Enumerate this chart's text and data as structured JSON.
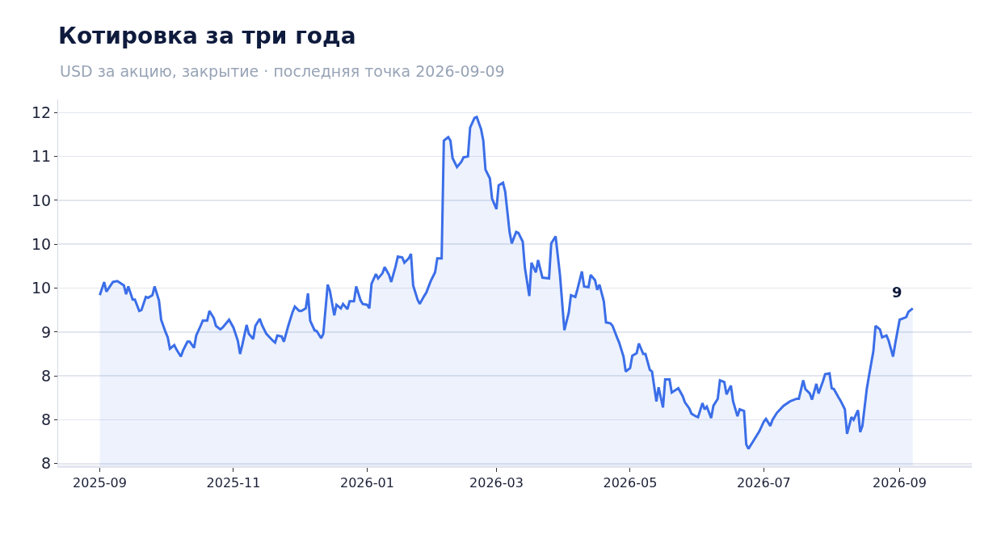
{
  "chart_data": {
    "type": "area",
    "title": "Котировка за три года",
    "subtitle": "USD за акцию, закрытие · последняя точка 2026-09-09",
    "color": "#3b6ee8",
    "grid": "y",
    "xlim": [
      "2025-08-13",
      "2026-10-04"
    ],
    "ylim": [
      7.48,
      11.65
    ],
    "xticks": [
      "2025-09",
      "2025-11",
      "2026-01",
      "2026-03",
      "2026-05",
      "2026-07",
      "2026-09"
    ],
    "yticks": [
      {
        "value": 7.5,
        "label": "8"
      },
      {
        "value": 8.0,
        "label": "8"
      },
      {
        "value": 8.5,
        "label": "8"
      },
      {
        "value": 9.0,
        "label": "9"
      },
      {
        "value": 9.5,
        "label": "10"
      },
      {
        "value": 10.0,
        "label": "10"
      },
      {
        "value": 10.5,
        "label": "10"
      },
      {
        "value": 11.0,
        "label": "11"
      },
      {
        "value": 11.5,
        "label": "12"
      }
    ],
    "annotations": [
      {
        "text": "9",
        "x": "2026-09-07",
        "y": 9.27
      }
    ],
    "x": [
      "2025-09-01",
      "2025-09-03",
      "2025-09-04",
      "2025-09-07",
      "2025-09-09",
      "2025-09-12",
      "2025-09-13",
      "2025-09-14",
      "2025-09-16",
      "2025-09-17",
      "2025-09-19",
      "2025-09-20",
      "2025-09-22",
      "2025-09-23",
      "2025-09-25",
      "2025-09-26",
      "2025-09-28",
      "2025-09-29",
      "2025-10-01",
      "2025-10-02",
      "2025-10-03",
      "2025-10-05",
      "2025-10-06",
      "2025-10-08",
      "2025-10-09",
      "2025-10-11",
      "2025-10-12",
      "2025-10-14",
      "2025-10-15",
      "2025-10-17",
      "2025-10-18",
      "2025-10-20",
      "2025-10-21",
      "2025-10-23",
      "2025-10-24",
      "2025-10-26",
      "2025-10-27",
      "2025-10-30",
      "2025-11-01",
      "2025-11-03",
      "2025-11-04",
      "2025-11-05",
      "2025-11-07",
      "2025-11-08",
      "2025-11-10",
      "2025-11-11",
      "2025-11-13",
      "2025-11-14",
      "2025-11-16",
      "2025-11-19",
      "2025-11-20",
      "2025-11-21",
      "2025-11-23",
      "2025-11-24",
      "2025-11-26",
      "2025-11-28",
      "2025-11-29",
      "2025-12-01",
      "2025-12-02",
      "2025-12-04",
      "2025-12-05",
      "2025-12-06",
      "2025-12-08",
      "2025-12-09",
      "2025-12-11",
      "2025-12-12",
      "2025-12-14",
      "2025-12-15",
      "2025-12-17",
      "2025-12-18",
      "2025-12-20",
      "2025-12-21",
      "2025-12-23",
      "2025-12-24",
      "2025-12-26",
      "2025-12-27",
      "2025-12-29",
      "2025-12-30",
      "2026-01-01",
      "2026-01-02",
      "2026-01-03",
      "2026-01-05",
      "2026-01-06",
      "2026-01-08",
      "2026-01-09",
      "2026-01-11",
      "2026-01-12",
      "2026-01-14",
      "2026-01-15",
      "2026-01-17",
      "2026-01-18",
      "2026-01-20",
      "2026-01-21",
      "2026-01-22",
      "2026-01-24",
      "2026-01-25",
      "2026-01-27",
      "2026-01-28",
      "2026-01-30",
      "2026-02-01",
      "2026-02-02",
      "2026-02-04",
      "2026-02-05",
      "2026-02-07",
      "2026-02-08",
      "2026-02-09",
      "2026-02-11",
      "2026-02-13",
      "2026-02-14",
      "2026-02-16",
      "2026-02-17",
      "2026-02-19",
      "2026-02-20",
      "2026-02-22",
      "2026-02-23",
      "2026-02-24",
      "2026-02-26",
      "2026-02-27",
      "2026-03-01",
      "2026-03-02",
      "2026-03-04",
      "2026-03-05",
      "2026-03-07",
      "2026-03-08",
      "2026-03-10",
      "2026-03-11",
      "2026-03-13",
      "2026-03-14",
      "2026-03-16",
      "2026-03-17",
      "2026-03-19",
      "2026-03-20",
      "2026-03-22",
      "2026-03-25",
      "2026-03-26",
      "2026-03-28",
      "2026-03-29",
      "2026-03-30",
      "2026-04-01",
      "2026-04-03",
      "2026-04-04",
      "2026-04-06",
      "2026-04-07",
      "2026-04-09",
      "2026-04-10",
      "2026-04-12",
      "2026-04-13",
      "2026-04-15",
      "2026-04-16",
      "2026-04-17",
      "2026-04-19",
      "2026-04-20",
      "2026-04-22",
      "2026-04-23",
      "2026-04-25",
      "2026-04-26",
      "2026-04-28",
      "2026-04-29",
      "2026-05-01",
      "2026-05-02",
      "2026-05-04",
      "2026-05-05",
      "2026-05-07",
      "2026-05-08",
      "2026-05-10",
      "2026-05-11",
      "2026-05-13",
      "2026-05-14",
      "2026-05-16",
      "2026-05-17",
      "2026-05-19",
      "2026-05-20",
      "2026-05-23",
      "2026-05-25",
      "2026-05-26",
      "2026-05-28",
      "2026-05-29",
      "2026-05-31",
      "2026-06-01",
      "2026-06-03",
      "2026-06-04",
      "2026-06-05",
      "2026-06-07",
      "2026-06-08",
      "2026-06-10",
      "2026-06-11",
      "2026-06-13",
      "2026-06-14",
      "2026-06-16",
      "2026-06-17",
      "2026-06-19",
      "2026-06-20",
      "2026-06-22",
      "2026-06-23",
      "2026-06-24",
      "2026-06-26",
      "2026-06-29",
      "2026-07-01",
      "2026-07-02",
      "2026-07-04",
      "2026-07-05",
      "2026-07-07",
      "2026-07-10",
      "2026-07-13",
      "2026-07-16",
      "2026-07-17",
      "2026-07-19",
      "2026-07-20",
      "2026-07-22",
      "2026-07-23",
      "2026-07-25",
      "2026-07-26",
      "2026-07-28",
      "2026-07-29",
      "2026-07-31",
      "2026-08-01",
      "2026-08-02",
      "2026-08-04",
      "2026-08-05",
      "2026-08-07",
      "2026-08-08",
      "2026-08-10",
      "2026-08-11",
      "2026-08-13",
      "2026-08-14",
      "2026-08-15",
      "2026-08-17",
      "2026-08-18",
      "2026-08-20",
      "2026-08-21",
      "2026-08-23",
      "2026-08-24",
      "2026-08-26",
      "2026-08-27",
      "2026-08-29",
      "2026-08-30",
      "2026-09-01",
      "2026-09-02",
      "2026-09-04",
      "2026-09-05",
      "2026-09-07"
    ],
    "values": [
      9.42,
      9.57,
      9.46,
      9.57,
      9.58,
      9.53,
      9.43,
      9.52,
      9.37,
      9.37,
      9.24,
      9.25,
      9.4,
      9.39,
      9.42,
      9.52,
      9.36,
      9.14,
      9.0,
      8.94,
      8.81,
      8.85,
      8.8,
      8.72,
      8.79,
      8.89,
      8.89,
      8.82,
      8.96,
      9.07,
      9.13,
      9.13,
      9.24,
      9.16,
      9.07,
      9.03,
      9.05,
      9.14,
      9.05,
      8.9,
      8.75,
      8.85,
      9.08,
      8.98,
      8.92,
      9.07,
      9.15,
      9.08,
      8.98,
      8.9,
      8.88,
      8.96,
      8.95,
      8.89,
      9.07,
      9.23,
      9.29,
      9.24,
      9.24,
      9.27,
      9.44,
      9.13,
      9.02,
      9.01,
      8.93,
      8.98,
      9.54,
      9.47,
      9.19,
      9.31,
      9.27,
      9.32,
      9.26,
      9.35,
      9.35,
      9.52,
      9.36,
      9.32,
      9.31,
      9.27,
      9.55,
      9.66,
      9.61,
      9.67,
      9.74,
      9.65,
      9.57,
      9.75,
      9.86,
      9.85,
      9.79,
      9.84,
      9.89,
      9.53,
      9.37,
      9.32,
      9.41,
      9.45,
      9.58,
      9.68,
      9.84,
      9.84,
      11.18,
      11.22,
      11.18,
      10.98,
      10.88,
      10.94,
      10.99,
      11.0,
      11.33,
      11.44,
      11.45,
      11.31,
      11.18,
      10.85,
      10.75,
      10.52,
      10.4,
      10.67,
      10.7,
      10.6,
      10.14,
      10.01,
      10.14,
      10.13,
      10.03,
      9.73,
      9.41,
      9.79,
      9.68,
      9.82,
      9.62,
      9.61,
      10.01,
      10.09,
      9.87,
      9.65,
      9.02,
      9.22,
      9.42,
      9.4,
      9.49,
      9.69,
      9.52,
      9.51,
      9.65,
      9.59,
      9.48,
      9.54,
      9.35,
      9.11,
      9.1,
      9.07,
      8.94,
      8.88,
      8.72,
      8.55,
      8.59,
      8.73,
      8.76,
      8.87,
      8.75,
      8.75,
      8.57,
      8.55,
      8.21,
      8.37,
      8.14,
      8.46,
      8.46,
      8.31,
      8.36,
      8.27,
      8.2,
      8.13,
      8.07,
      8.04,
      8.03,
      8.19,
      8.12,
      8.15,
      8.02,
      8.16,
      8.24,
      8.45,
      8.43,
      8.29,
      8.39,
      8.21,
      8.04,
      8.12,
      8.1,
      7.72,
      7.67,
      7.75,
      7.87,
      7.98,
      8.01,
      7.93,
      8.0,
      8.08,
      8.16,
      8.21,
      8.24,
      8.24,
      8.45,
      8.35,
      8.3,
      8.23,
      8.41,
      8.3,
      8.44,
      8.52,
      8.53,
      8.36,
      8.35,
      8.26,
      8.22,
      8.12,
      7.84,
      8.03,
      8.0,
      8.11,
      7.86,
      7.93,
      8.35,
      8.5,
      8.78,
      9.07,
      9.03,
      8.94,
      8.96,
      8.9,
      8.72,
      8.87,
      9.14,
      9.15,
      9.17,
      9.23,
      9.27
    ]
  }
}
